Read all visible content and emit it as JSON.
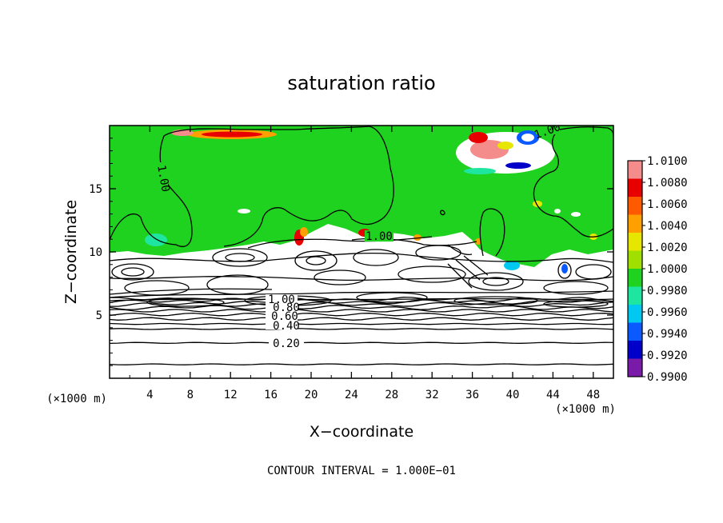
{
  "chart_data": {
    "type": "heatmap",
    "title": "saturation ratio",
    "xlabel": "X−coordinate",
    "ylabel": "Z−coordinate",
    "x_unit": "(×1000 m)",
    "z_unit": "(×1000 m)",
    "xlim": [
      0,
      50
    ],
    "ylim": [
      0,
      20
    ],
    "x_ticks": [
      "4",
      "8",
      "12",
      "16",
      "20",
      "24",
      "28",
      "32",
      "36",
      "40",
      "44",
      "48"
    ],
    "y_ticks": [
      "5",
      "10",
      "15"
    ],
    "footer": "CONTOUR INTERVAL = 1.000E−01",
    "contour_interval": 0.1,
    "contour_labels": [
      "1.00",
      "1.00",
      "1.00",
      "1.00",
      "0.80",
      "0.60",
      "0.40",
      "0.20"
    ],
    "colorbar": {
      "labels": [
        "1.0100",
        "1.0080",
        "1.0060",
        "1.0040",
        "1.0020",
        "1.0000",
        "0.9980",
        "0.9960",
        "0.9940",
        "0.9920",
        "0.9900"
      ],
      "colors": [
        "#f48c8c",
        "#e80000",
        "#ff5a00",
        "#ff9f00",
        "#e6e600",
        "#a0e000",
        "#1fd21f",
        "#1ee5a0",
        "#00c8f0",
        "#0a5aff",
        "#0000c8",
        "#7a1aa8"
      ]
    },
    "colors": {
      "saturated": "#1fd21f",
      "subsaturated": "#ffffff",
      "contour": "#000000"
    }
  }
}
